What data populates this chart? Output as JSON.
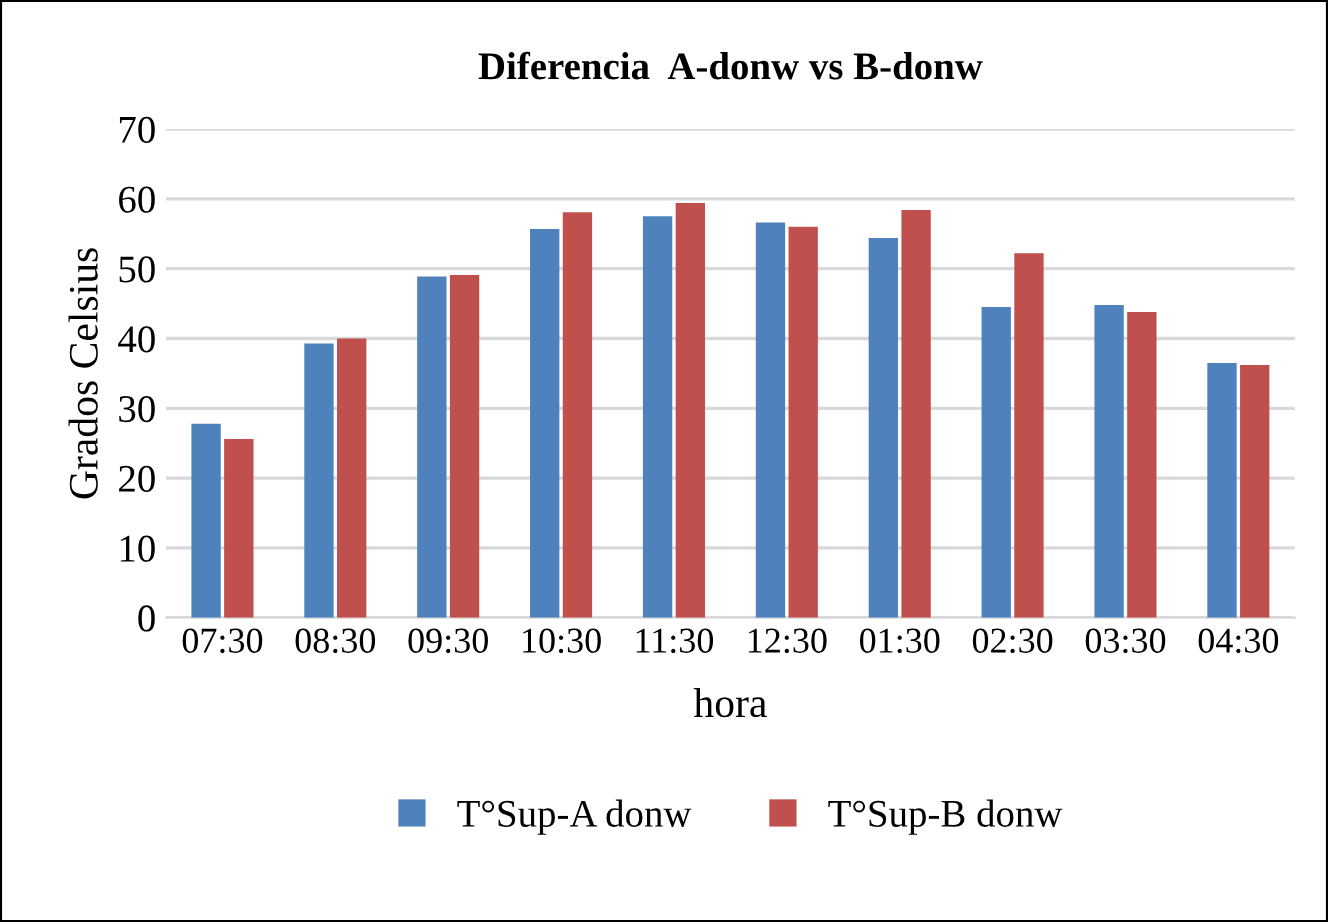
{
  "chart_data": {
    "type": "bar",
    "title": "Diferencia  A-donw vs B-donw",
    "xlabel": "hora",
    "ylabel": "Grados Celsius",
    "categories": [
      "07:30",
      "08:30",
      "09:30",
      "10:30",
      "11:30",
      "12:30",
      "01:30",
      "02:30",
      "03:30",
      "04:30"
    ],
    "series": [
      {
        "name": "T°Sup-A donw",
        "color": "#4f81bd",
        "values": [
          27.8,
          39.3,
          48.9,
          55.7,
          57.5,
          56.6,
          54.4,
          44.5,
          44.8,
          36.5
        ]
      },
      {
        "name": "T°Sup-B donw",
        "color": "#c0504d",
        "values": [
          25.6,
          40.0,
          49.1,
          58.1,
          59.4,
          56.0,
          58.4,
          52.2,
          43.8,
          36.2
        ]
      }
    ],
    "ylim": [
      0,
      70
    ],
    "yticks": [
      0,
      10,
      20,
      30,
      40,
      50,
      60,
      70
    ],
    "grid": "y",
    "legend": "bottom"
  }
}
